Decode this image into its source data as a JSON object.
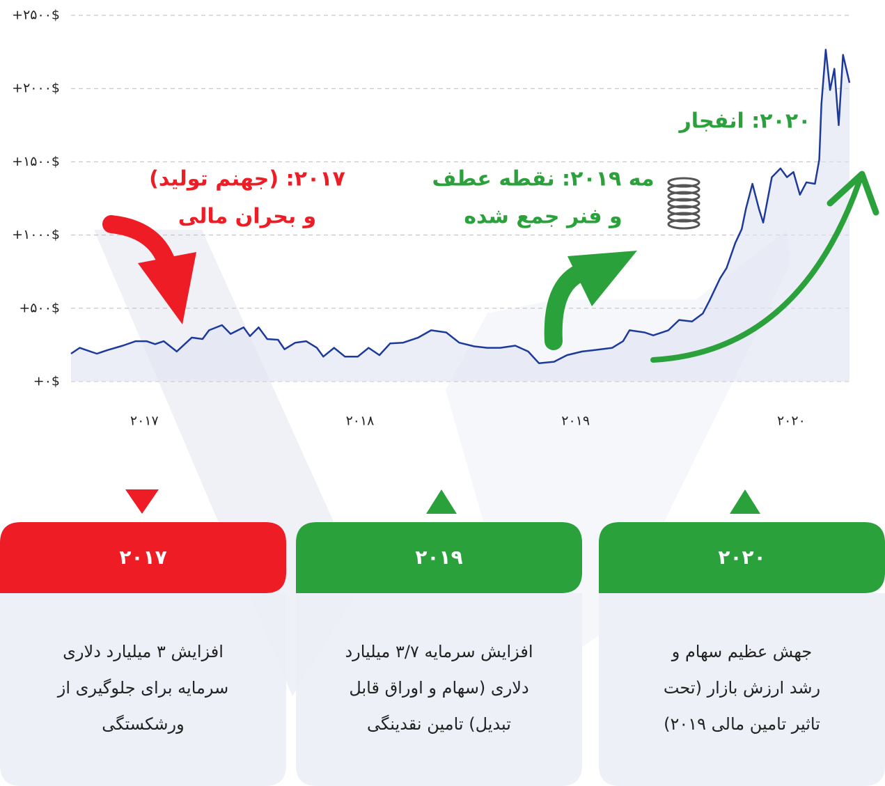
{
  "chart_data": {
    "type": "line",
    "x": [
      2016.66,
      2016.7,
      2016.75,
      2016.78,
      2016.83,
      2016.9,
      2016.96,
      2017.01,
      2017.05,
      2017.09,
      2017.15,
      2017.22,
      2017.27,
      2017.3,
      2017.36,
      2017.4,
      2017.46,
      2017.49,
      2017.53,
      2017.57,
      2017.62,
      2017.65,
      2017.7,
      2017.75,
      2017.8,
      2017.83,
      2017.88,
      2017.93,
      2017.99,
      2018.04,
      2018.09,
      2018.14,
      2018.2,
      2018.27,
      2018.33,
      2018.4,
      2018.46,
      2018.53,
      2018.59,
      2018.65,
      2018.72,
      2018.78,
      2018.83,
      2018.9,
      2018.96,
      2019.03,
      2019.09,
      2019.17,
      2019.22,
      2019.25,
      2019.32,
      2019.36,
      2019.43,
      2019.48,
      2019.54,
      2019.59,
      2019.62,
      2019.67,
      2019.7,
      2019.74,
      2019.77,
      2019.79,
      2019.82,
      2019.85,
      2019.87,
      2019.91,
      2019.95,
      2019.98,
      2020.01,
      2020.04,
      2020.07,
      2020.11,
      2020.13,
      2020.14,
      2020.16,
      2020.18,
      2020.2,
      2020.22,
      2020.24,
      2020.27
    ],
    "series": [
      {
        "color": "#1c3a9c",
        "values": [
          190,
          230,
          205,
          190,
          215,
          245,
          275,
          275,
          255,
          275,
          205,
          300,
          290,
          350,
          385,
          325,
          370,
          310,
          370,
          290,
          285,
          220,
          265,
          275,
          230,
          170,
          230,
          170,
          170,
          230,
          180,
          260,
          265,
          300,
          350,
          335,
          265,
          240,
          230,
          230,
          245,
          205,
          125,
          135,
          180,
          205,
          215,
          230,
          275,
          350,
          335,
          315,
          350,
          420,
          410,
          465,
          550,
          705,
          775,
          945,
          1040,
          1180,
          1350,
          1180,
          1085,
          1395,
          1455,
          1395,
          1430,
          1275,
          1360,
          1350,
          1515,
          1895,
          2265,
          1990,
          2135,
          1750,
          2230,
          2040
        ]
      }
    ],
    "xlim": [
      2016.66,
      2020.27
    ],
    "xticks": [
      {
        "value": 2017,
        "label": "۲۰۱۷"
      },
      {
        "value": 2018,
        "label": "۲۰۱۸"
      },
      {
        "value": 2019,
        "label": "۲۰۱۹"
      },
      {
        "value": 2020,
        "label": "۲۰۲۰"
      }
    ],
    "ylim": [
      0,
      2500
    ],
    "yticks": [
      {
        "value": 0,
        "label": "+۰$"
      },
      {
        "value": 500,
        "label": "+۵۰۰$"
      },
      {
        "value": 1000,
        "label": "+۱۰۰۰$"
      },
      {
        "value": 1500,
        "label": "+۱۵۰۰$"
      },
      {
        "value": 2000,
        "label": "+۲۰۰۰$"
      },
      {
        "value": 2500,
        "label": "+۲۵۰۰$"
      }
    ],
    "grid": true,
    "annotations": [
      {
        "lines": [
          "۲۰۱۷: (جهنم تولید)",
          "و بحران مالی"
        ],
        "color": "#ee1c25"
      },
      {
        "lines": [
          "مه ۲۰۱۹: نقطه عطف",
          "و فنر جمع شده"
        ],
        "color": "#2aa13b"
      },
      {
        "lines": [
          "۲۰۲۰: انفجار"
        ],
        "color": "#2aa13b"
      }
    ]
  },
  "cards": [
    {
      "title": "۲۰۱۷",
      "color": "#ee1c25",
      "lines": [
        "افزایش ۳ میلیارد دلاری",
        "سرمایه برای جلوگیری از",
        "ورشکستگی"
      ]
    },
    {
      "title": "۲۰۱۹",
      "color": "#2aa13b",
      "lines": [
        "افزایش سرمایه ۳/۷ میلیارد",
        "دلاری (سهام و اوراق قابل",
        "تبدیل) تامین نقدینگی"
      ]
    },
    {
      "title": "۲۰۲۰",
      "color": "#2aa13b",
      "lines": [
        "جهش عظیم سهام و",
        "رشد ارزش بازار (تحت",
        "تاثیر تامین مالی ۲۰۱۹)"
      ]
    }
  ]
}
